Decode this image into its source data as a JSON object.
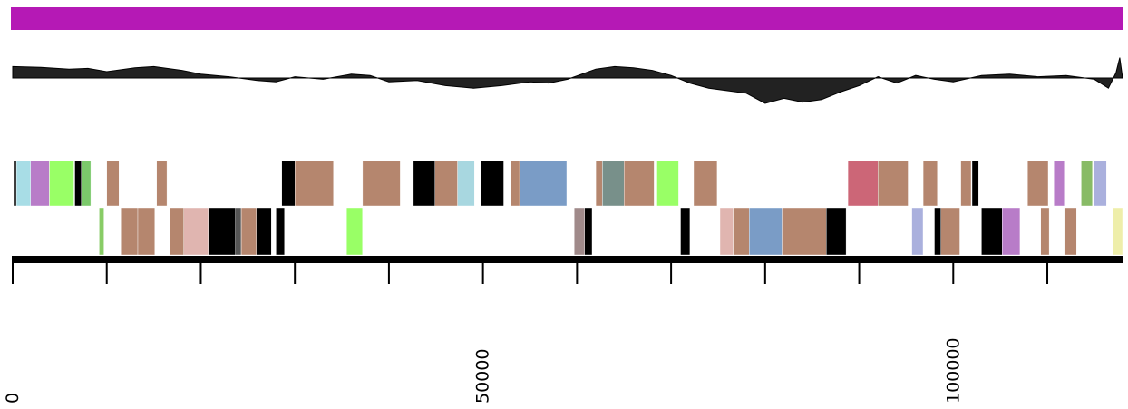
{
  "genome": {
    "length": 118000,
    "axis": {
      "tick_interval": 10000,
      "labels": [
        {
          "pos": 0,
          "text": "0"
        },
        {
          "pos": 50000,
          "text": "50000"
        },
        {
          "pos": 100000,
          "text": "100000"
        }
      ]
    },
    "gc_band": {
      "color": "#b519b5"
    },
    "gc_skew": [
      {
        "pos": 0,
        "value": 0.45
      },
      {
        "pos": 3000,
        "value": 0.42
      },
      {
        "pos": 6000,
        "value": 0.35
      },
      {
        "pos": 8000,
        "value": 0.38
      },
      {
        "pos": 10000,
        "value": 0.25
      },
      {
        "pos": 13000,
        "value": 0.4
      },
      {
        "pos": 15000,
        "value": 0.45
      },
      {
        "pos": 18000,
        "value": 0.3
      },
      {
        "pos": 20000,
        "value": 0.15
      },
      {
        "pos": 23000,
        "value": 0.05
      },
      {
        "pos": 26000,
        "value": -0.1
      },
      {
        "pos": 28000,
        "value": -0.15
      },
      {
        "pos": 30000,
        "value": 0.05
      },
      {
        "pos": 33000,
        "value": -0.05
      },
      {
        "pos": 36000,
        "value": 0.15
      },
      {
        "pos": 38000,
        "value": 0.1
      },
      {
        "pos": 40000,
        "value": -0.15
      },
      {
        "pos": 43000,
        "value": -0.1
      },
      {
        "pos": 46000,
        "value": -0.3
      },
      {
        "pos": 49000,
        "value": -0.4
      },
      {
        "pos": 52000,
        "value": -0.3
      },
      {
        "pos": 55000,
        "value": -0.15
      },
      {
        "pos": 57000,
        "value": -0.2
      },
      {
        "pos": 59000,
        "value": -0.05
      },
      {
        "pos": 62000,
        "value": 0.35
      },
      {
        "pos": 64000,
        "value": 0.45
      },
      {
        "pos": 66000,
        "value": 0.4
      },
      {
        "pos": 68000,
        "value": 0.3
      },
      {
        "pos": 70000,
        "value": 0.1
      },
      {
        "pos": 72000,
        "value": -0.2
      },
      {
        "pos": 74000,
        "value": -0.4
      },
      {
        "pos": 76000,
        "value": -0.5
      },
      {
        "pos": 78000,
        "value": -0.6
      },
      {
        "pos": 80000,
        "value": -1.0
      },
      {
        "pos": 82000,
        "value": -0.8
      },
      {
        "pos": 84000,
        "value": -0.95
      },
      {
        "pos": 86000,
        "value": -0.85
      },
      {
        "pos": 88000,
        "value": -0.55
      },
      {
        "pos": 90000,
        "value": -0.3
      },
      {
        "pos": 92000,
        "value": 0.05
      },
      {
        "pos": 94000,
        "value": -0.2
      },
      {
        "pos": 96000,
        "value": 0.1
      },
      {
        "pos": 98000,
        "value": -0.05
      },
      {
        "pos": 100000,
        "value": -0.15
      },
      {
        "pos": 103000,
        "value": 0.1
      },
      {
        "pos": 106000,
        "value": 0.15
      },
      {
        "pos": 109000,
        "value": 0.05
      },
      {
        "pos": 112000,
        "value": 0.1
      },
      {
        "pos": 115000,
        "value": -0.05
      },
      {
        "pos": 116500,
        "value": -0.4
      },
      {
        "pos": 117300,
        "value": 0.2
      },
      {
        "pos": 117700,
        "value": 0.8
      },
      {
        "pos": 118000,
        "value": 0.0
      }
    ],
    "genes_forward": [
      {
        "start": 100,
        "end": 400,
        "color": "#111111"
      },
      {
        "start": 400,
        "end": 1900,
        "color": "#a8dde6"
      },
      {
        "start": 1900,
        "end": 3900,
        "color": "#b87cc8"
      },
      {
        "start": 3900,
        "end": 6500,
        "color": "#99ff66"
      },
      {
        "start": 6600,
        "end": 7300,
        "color": "#000000"
      },
      {
        "start": 7300,
        "end": 8300,
        "color": "#7bc96b"
      },
      {
        "start": 10000,
        "end": 11300,
        "color": "#b5866e"
      },
      {
        "start": 15300,
        "end": 16400,
        "color": "#b5866e"
      },
      {
        "start": 28600,
        "end": 30000,
        "color": "#000000"
      },
      {
        "start": 30000,
        "end": 34100,
        "color": "#b5866e"
      },
      {
        "start": 37200,
        "end": 41200,
        "color": "#b5866e"
      },
      {
        "start": 42600,
        "end": 44900,
        "color": "#000000"
      },
      {
        "start": 44900,
        "end": 47300,
        "color": "#b5866e"
      },
      {
        "start": 47300,
        "end": 49100,
        "color": "#a8d7e0"
      },
      {
        "start": 49800,
        "end": 52200,
        "color": "#000000"
      },
      {
        "start": 53000,
        "end": 53900,
        "color": "#b5866e"
      },
      {
        "start": 53900,
        "end": 58900,
        "color": "#7a9cc6"
      },
      {
        "start": 62000,
        "end": 62700,
        "color": "#b5866e"
      },
      {
        "start": 62700,
        "end": 65000,
        "color": "#78908a"
      },
      {
        "start": 65000,
        "end": 68200,
        "color": "#b5866e"
      },
      {
        "start": 68500,
        "end": 70800,
        "color": "#99ff66"
      },
      {
        "start": 72400,
        "end": 74900,
        "color": "#b5866e"
      },
      {
        "start": 88800,
        "end": 90200,
        "color": "#cc6677"
      },
      {
        "start": 90200,
        "end": 92000,
        "color": "#cc6677"
      },
      {
        "start": 92000,
        "end": 95200,
        "color": "#b5866e"
      },
      {
        "start": 96800,
        "end": 98300,
        "color": "#b5866e"
      },
      {
        "start": 100800,
        "end": 101900,
        "color": "#b5866e"
      },
      {
        "start": 102000,
        "end": 102700,
        "color": "#000000"
      },
      {
        "start": 107900,
        "end": 110100,
        "color": "#b5866e"
      },
      {
        "start": 110700,
        "end": 111800,
        "color": "#b87cc8"
      },
      {
        "start": 113600,
        "end": 114800,
        "color": "#88bb66"
      },
      {
        "start": 114900,
        "end": 116300,
        "color": "#aab0dd"
      }
    ],
    "genes_reverse": [
      {
        "start": 9200,
        "end": 9700,
        "color": "#88cc66"
      },
      {
        "start": 11500,
        "end": 13300,
        "color": "#b5866e"
      },
      {
        "start": 13300,
        "end": 15100,
        "color": "#b5866e"
      },
      {
        "start": 16700,
        "end": 18200,
        "color": "#b5866e"
      },
      {
        "start": 18200,
        "end": 20800,
        "color": "#e0b5b0"
      },
      {
        "start": 20800,
        "end": 23700,
        "color": "#000000"
      },
      {
        "start": 23700,
        "end": 24300,
        "color": "#555555"
      },
      {
        "start": 24300,
        "end": 25900,
        "color": "#b5866e"
      },
      {
        "start": 25900,
        "end": 27500,
        "color": "#000000"
      },
      {
        "start": 28000,
        "end": 28900,
        "color": "#000000"
      },
      {
        "start": 35500,
        "end": 37200,
        "color": "#99ff66"
      },
      {
        "start": 59700,
        "end": 60800,
        "color": "#a08a8a"
      },
      {
        "start": 60800,
        "end": 61600,
        "color": "#000000"
      },
      {
        "start": 71000,
        "end": 72000,
        "color": "#000000"
      },
      {
        "start": 75200,
        "end": 76600,
        "color": "#e0b5b0"
      },
      {
        "start": 76600,
        "end": 78300,
        "color": "#b5866e"
      },
      {
        "start": 78300,
        "end": 81800,
        "color": "#7a9cc6"
      },
      {
        "start": 81800,
        "end": 86500,
        "color": "#b5866e"
      },
      {
        "start": 86500,
        "end": 88600,
        "color": "#000000"
      },
      {
        "start": 95600,
        "end": 96800,
        "color": "#aab0dd"
      },
      {
        "start": 98000,
        "end": 98700,
        "color": "#000000"
      },
      {
        "start": 98700,
        "end": 100700,
        "color": "#b5866e"
      },
      {
        "start": 103000,
        "end": 105200,
        "color": "#000000"
      },
      {
        "start": 105200,
        "end": 107100,
        "color": "#b87cc8"
      },
      {
        "start": 109300,
        "end": 110200,
        "color": "#b5866e"
      },
      {
        "start": 111800,
        "end": 113100,
        "color": "#b5866e"
      },
      {
        "start": 117000,
        "end": 118000,
        "color": "#eeeeaa"
      }
    ]
  }
}
